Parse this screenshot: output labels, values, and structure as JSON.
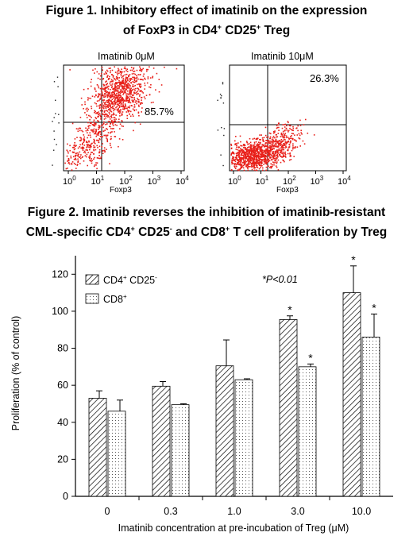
{
  "figure1": {
    "title_line1": "Figure 1.  Inhibitory effect of imatinib on the expression",
    "title_line2_pre": "of FoxP3 in CD4",
    "title_line2_sup1": "+",
    "title_line2_mid": " CD25",
    "title_line2_sup2": "+",
    "title_line2_post": " Treg",
    "panels": [
      {
        "label": "Imatinib 0μM",
        "percent": "85.7%",
        "xlabel": "Foxp3",
        "ticks": [
          "0",
          "1",
          "2",
          "3",
          "4"
        ]
      },
      {
        "label": "Imatinib 10μM",
        "percent": "26.3%",
        "xlabel": "Foxp3",
        "ticks": [
          "0",
          "1",
          "2",
          "3",
          "4"
        ]
      }
    ]
  },
  "figure2": {
    "title_line1": "Figure 2.  Imatinib reverses the inhibition of imatinib-resistant",
    "title_line2_pre": "CML-specific CD4",
    "title_line2_sup1": "+",
    "title_line2_mid1": " CD25",
    "title_line2_sup2": "-",
    "title_line2_mid2": " and CD8",
    "title_line2_sup3": "+",
    "title_line2_post": " T cell proliferation by Treg"
  },
  "chart_data": {
    "type": "bar",
    "categories": [
      "0",
      "0.3",
      "1.0",
      "3.0",
      "10.0"
    ],
    "series": [
      {
        "name": "CD4+ CD25-",
        "values": [
          53,
          59.5,
          70.5,
          95.5,
          110
        ],
        "errors": [
          4,
          2.5,
          14,
          2,
          14.5
        ],
        "significant": [
          false,
          false,
          false,
          true,
          true
        ],
        "fill": "diagonal hatch"
      },
      {
        "name": "CD8+",
        "values": [
          46,
          49.5,
          63,
          70,
          86
        ],
        "errors": [
          6,
          0.5,
          0.5,
          1.5,
          12.5
        ],
        "significant": [
          false,
          false,
          false,
          true,
          true
        ],
        "fill": "dotted"
      }
    ],
    "xlabel": "Imatinib concentration at pre-incubation of Treg (μM)",
    "ylabel": "Proliferation (% of control)",
    "ylim": [
      0,
      130
    ],
    "yticks": [
      "0",
      "20",
      "40",
      "60",
      "80",
      "100",
      "120"
    ],
    "annotation": "*P<0.01",
    "significance_mark": "*",
    "legend_position": "top-left",
    "legend": {
      "s1_base": "CD4",
      "s1_sup1": "+",
      "s1_mid": " CD25",
      "s1_sup2": "-",
      "s2_base": "CD8",
      "s2_sup": "+"
    },
    "grid": false
  }
}
